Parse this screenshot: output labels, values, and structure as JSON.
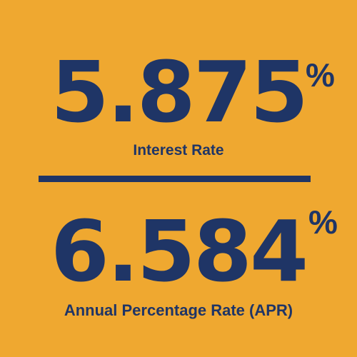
{
  "colors": {
    "background": "#EFA830",
    "text": "#1F3566"
  },
  "interest": {
    "value": "5.875",
    "percent_symbol": "%",
    "label": "Interest Rate"
  },
  "apr": {
    "value": "6.584",
    "percent_symbol": "%",
    "label": "Annual Percentage Rate (APR)"
  }
}
